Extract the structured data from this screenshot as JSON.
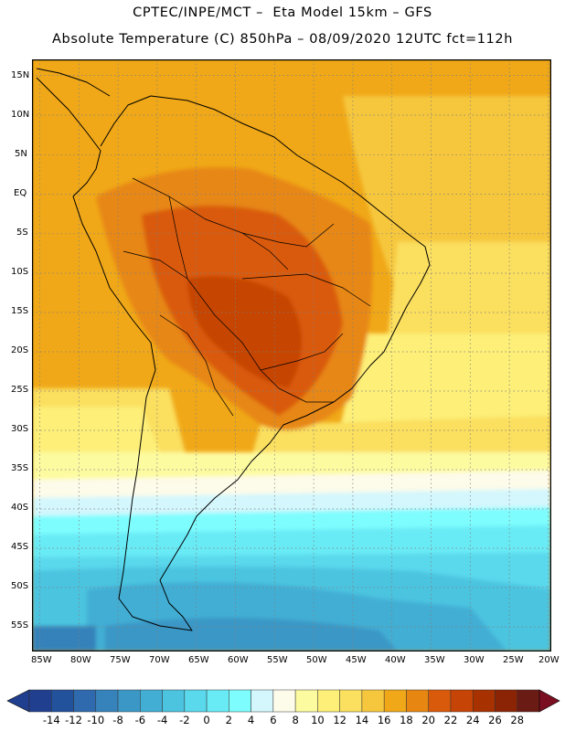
{
  "title": {
    "line1": "CPTEC/INPE/MCT –  Eta Model 15km – GFS",
    "line2": "Absolute Temperature (C) 850hPa – 08/09/2020 12UTC fct=112h"
  },
  "map": {
    "projection": "lat-lon",
    "lon_range": [
      -86,
      -19
    ],
    "lat_range": [
      -58,
      16
    ],
    "graticule": "dotted, every 5 degrees",
    "lat_ticks": [
      "15N",
      "10N",
      "5N",
      "EQ",
      "5S",
      "10S",
      "15S",
      "20S",
      "25S",
      "30S",
      "35S",
      "40S",
      "45S",
      "50S",
      "55S"
    ],
    "lon_ticks": [
      "85W",
      "80W",
      "75W",
      "70W",
      "65W",
      "60W",
      "55W",
      "50W",
      "45W",
      "40W",
      "35W",
      "30W",
      "25W",
      "20W"
    ]
  },
  "colorbar": {
    "labels": [
      "-14",
      "-12",
      "-10",
      "-8",
      "-6",
      "-4",
      "-2",
      "0",
      "2",
      "4",
      "6",
      "8",
      "10",
      "12",
      "14",
      "16",
      "18",
      "20",
      "22",
      "24",
      "26",
      "28"
    ],
    "colors": [
      "#213f8f",
      "#23529c",
      "#2e6aad",
      "#3682ba",
      "#3b97c6",
      "#43aed4",
      "#4cc4e0",
      "#5ad8ec",
      "#69ebf6",
      "#7efdfe",
      "#d3f7fd",
      "#fdfbe9",
      "#fdfba0",
      "#fdef78",
      "#fbdf5e",
      "#f6c73d",
      "#f0a818",
      "#e78712",
      "#d95a0a",
      "#c64406",
      "#a83100",
      "#8a2404",
      "#6a1b14"
    ]
  }
}
